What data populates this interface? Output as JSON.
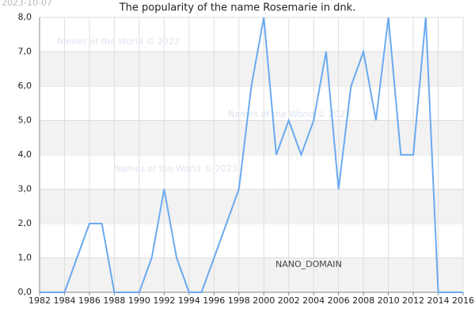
{
  "chart_data": {
    "type": "line",
    "title": "The popularity of the name Rosemarie in dnk.",
    "date_stamp": "2023-10-07",
    "watermark": "Names of the World © 2023",
    "domain_label": "NANO_DOMAIN",
    "x": [
      1982,
      1983,
      1984,
      1986,
      1987,
      1988,
      1989,
      1990,
      1991,
      1992,
      1993,
      1994,
      1995,
      1998,
      1999,
      2000,
      2001,
      2002,
      2003,
      2004,
      2005,
      2006,
      2007,
      2008,
      2009,
      2010,
      2011,
      2012,
      2013,
      2014,
      2015,
      2016
    ],
    "series": [
      {
        "name": "Rosemarie",
        "color": "#6aaaf0",
        "values": [
          0,
          0,
          0,
          2,
          2,
          0,
          0,
          0,
          1,
          3,
          1,
          0,
          0,
          3,
          6,
          8,
          4,
          5,
          4,
          5,
          7,
          3,
          6,
          7,
          5,
          8,
          4,
          4,
          8,
          0,
          0,
          0
        ]
      }
    ],
    "xlim": [
      1982,
      2016
    ],
    "xticks": [
      1982,
      1984,
      1986,
      1988,
      1990,
      1992,
      1994,
      1996,
      1998,
      2000,
      2002,
      2004,
      2006,
      2008,
      2010,
      2012,
      2014,
      2016
    ],
    "ylim": [
      0,
      8
    ],
    "yticks": [
      {
        "value": 0,
        "label": "0,0"
      },
      {
        "value": 1,
        "label": "1,0"
      },
      {
        "value": 2,
        "label": "2,0"
      },
      {
        "value": 3,
        "label": "3,0"
      },
      {
        "value": 4,
        "label": "4,0"
      },
      {
        "value": 5,
        "label": "5,0"
      },
      {
        "value": 6,
        "label": "6,0"
      },
      {
        "value": 7,
        "label": "7,0"
      },
      {
        "value": 8,
        "label": "8,0"
      }
    ],
    "grid": true
  }
}
